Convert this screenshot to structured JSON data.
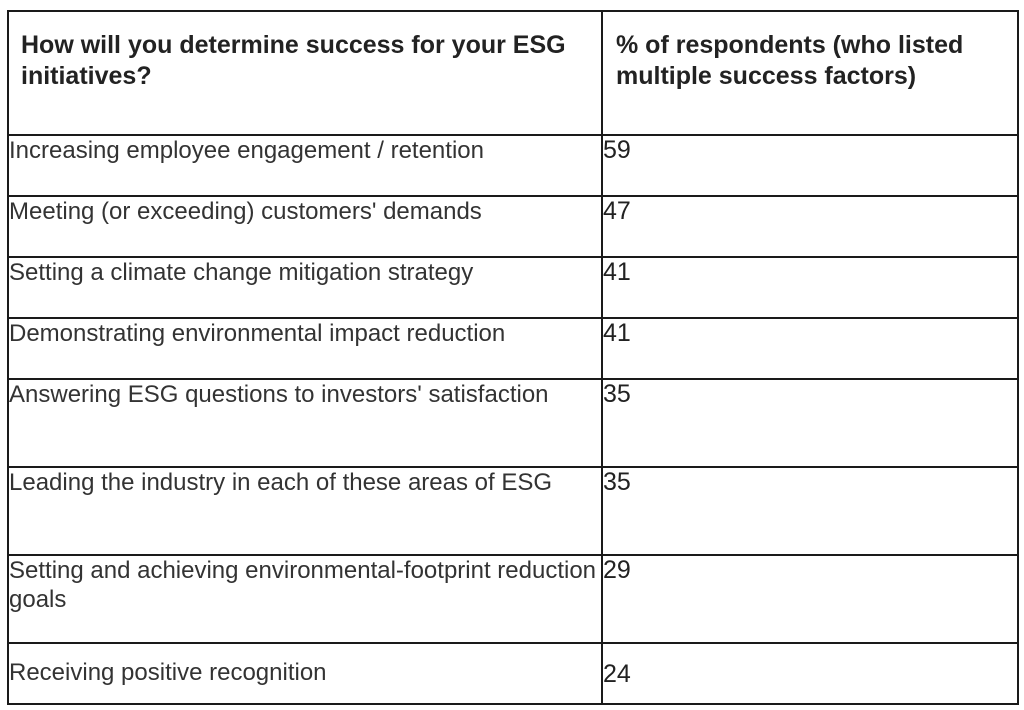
{
  "chart_data": {
    "type": "table",
    "columns": [
      "How will you determine success for your ESG initiatives?",
      "% of respondents (who listed multiple success factors)"
    ],
    "rows": [
      {
        "factor": "Increasing employee engagement / retention",
        "percent": 59
      },
      {
        "factor": "Meeting (or exceeding) customers' demands",
        "percent": 47
      },
      {
        "factor": "Setting a climate change mitigation strategy",
        "percent": 41
      },
      {
        "factor": "Demonstrating environmental impact reduction",
        "percent": 41
      },
      {
        "factor": "Answering ESG questions to investors' satisfaction",
        "percent": 35
      },
      {
        "factor": "Leading the industry in each of these areas of ESG",
        "percent": 35
      },
      {
        "factor": "Setting and achieving environmental-footprint reduction goals",
        "percent": 29
      },
      {
        "factor": "Receiving positive recognition",
        "percent": 24
      }
    ]
  }
}
